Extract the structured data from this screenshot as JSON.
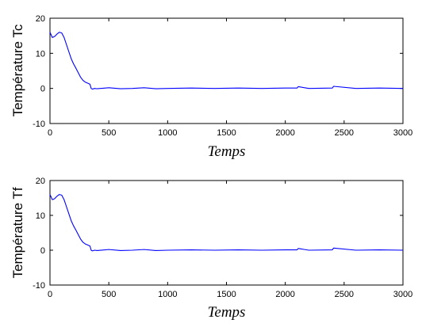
{
  "chart_data": [
    {
      "type": "line",
      "ylabel": "Température Tc",
      "xlabel": "Temps",
      "xlim": [
        0,
        3000
      ],
      "ylim": [
        -10,
        20
      ],
      "x_ticks": [
        "0",
        "500",
        "1000",
        "1500",
        "2000",
        "2500",
        "3000"
      ],
      "y_ticks": [
        "-10",
        "0",
        "10",
        "20"
      ],
      "grid": false,
      "line_color": "#0000ff",
      "series": [
        {
          "x": [
            0,
            20,
            40,
            60,
            80,
            100,
            120,
            140,
            160,
            180,
            200,
            220,
            240,
            260,
            280,
            300,
            320,
            340,
            350,
            360,
            380,
            400,
            500,
            600,
            700,
            800,
            900,
            1000,
            1200,
            1400,
            1600,
            1800,
            2000,
            2100,
            2110,
            2200,
            2400,
            2410,
            2600,
            2800,
            3000
          ],
          "y": [
            16,
            14.5,
            14.8,
            15.5,
            16,
            15.8,
            14.5,
            12.5,
            10.5,
            8.5,
            7,
            5.8,
            4.5,
            3.2,
            2.3,
            1.8,
            1.5,
            1.2,
            0,
            -0.2,
            0,
            -0.1,
            0.2,
            -0.1,
            0,
            0.2,
            -0.1,
            0,
            0.1,
            0,
            0.1,
            0,
            0.1,
            0.1,
            0.5,
            0,
            0.1,
            0.6,
            0,
            0.1,
            0
          ]
        }
      ]
    },
    {
      "type": "line",
      "ylabel": "Température Tf",
      "xlabel": "Temps",
      "xlim": [
        0,
        3000
      ],
      "ylim": [
        -10,
        20
      ],
      "x_ticks": [
        "0",
        "500",
        "1000",
        "1500",
        "2000",
        "2500",
        "3000"
      ],
      "y_ticks": [
        "-10",
        "0",
        "10",
        "20"
      ],
      "grid": false,
      "line_color": "#0000ff",
      "series": [
        {
          "x": [
            0,
            20,
            40,
            60,
            80,
            100,
            120,
            140,
            160,
            180,
            200,
            220,
            240,
            260,
            280,
            300,
            320,
            340,
            350,
            360,
            380,
            400,
            500,
            600,
            700,
            800,
            900,
            1000,
            1200,
            1400,
            1600,
            1800,
            2000,
            2100,
            2110,
            2200,
            2400,
            2410,
            2600,
            2800,
            3000
          ],
          "y": [
            16,
            14.5,
            14.8,
            15.5,
            16,
            15.8,
            14.5,
            12.5,
            10.5,
            8.5,
            7,
            5.8,
            4.5,
            3.2,
            2.3,
            1.8,
            1.5,
            1.2,
            0,
            -0.2,
            0,
            -0.1,
            0.2,
            -0.1,
            0,
            0.2,
            -0.1,
            0,
            0.1,
            0,
            0.1,
            0,
            0.1,
            0.1,
            0.5,
            0,
            0.1,
            0.6,
            0,
            0.1,
            0
          ]
        }
      ]
    }
  ]
}
